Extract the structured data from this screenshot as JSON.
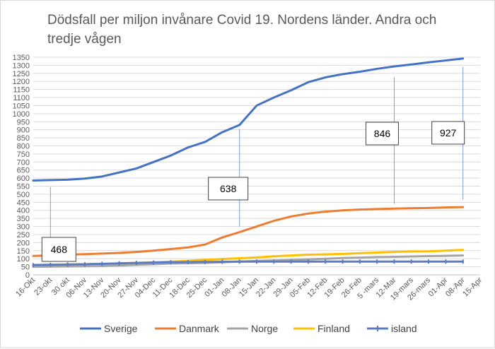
{
  "chart_data": {
    "type": "line",
    "title": "Dödsfall per miljon invånare Covid 19. Nordens länder. Andra och tredje  vågen",
    "xlabel": "",
    "ylabel": "",
    "ylim": [
      0,
      1350
    ],
    "yticks": [
      0,
      50,
      100,
      150,
      200,
      250,
      300,
      350,
      400,
      450,
      500,
      550,
      600,
      650,
      700,
      750,
      800,
      850,
      900,
      950,
      1000,
      1050,
      1100,
      1150,
      1200,
      1250,
      1300,
      1350
    ],
    "grid": true,
    "legend": "bottom",
    "x": [
      "16-Okt",
      "23-okt",
      "30 okt",
      "06-Nov",
      "13-Nov",
      "20-Nov",
      "27-Nov",
      "04-Dec",
      "11-Dec",
      "18-Dec",
      "25-Dec",
      "01-Jan",
      "08-Jan",
      "15-Jan",
      "22-Jan",
      "29-Jan",
      "05-Feb",
      "12-Feb",
      "19-Feb",
      "26-Feb",
      "5 -mars",
      "12-Mar",
      "19-mars",
      "26-mars",
      "01-Apr",
      "08-Apr",
      "15-Apr"
    ],
    "series": [
      {
        "name": "Sverige",
        "color": "#4472c4",
        "values": [
          585,
          588,
          590,
          597,
          610,
          635,
          660,
          700,
          740,
          790,
          825,
          885,
          930,
          1050,
          1100,
          1145,
          1195,
          1225,
          1245,
          1260,
          1278,
          1293,
          1305,
          1318,
          1330,
          1342,
          null
        ]
      },
      {
        "name": "Danmark",
        "color": "#ed7d31",
        "values": [
          117,
          120,
          125,
          128,
          132,
          136,
          142,
          150,
          160,
          170,
          188,
          232,
          265,
          300,
          335,
          362,
          380,
          392,
          400,
          405,
          408,
          411,
          413,
          415,
          418,
          420,
          null
        ]
      },
      {
        "name": "Norge",
        "color": "#a5a5a5",
        "values": [
          50,
          51,
          52,
          53,
          55,
          58,
          62,
          66,
          70,
          72,
          74,
          78,
          82,
          86,
          89,
          92,
          96,
          100,
          104,
          107,
          110,
          112,
          114,
          116,
          118,
          120,
          null
        ]
      },
      {
        "name": "Finland",
        "color": "#ffc000",
        "values": [
          62,
          63,
          64,
          66,
          68,
          71,
          74,
          78,
          82,
          87,
          93,
          98,
          103,
          108,
          115,
          120,
          125,
          127,
          130,
          134,
          138,
          142,
          145,
          146,
          150,
          155,
          null
        ]
      },
      {
        "name": "island",
        "color": "#5b7bc4",
        "values": [
          60,
          62,
          64,
          66,
          68,
          71,
          74,
          76,
          78,
          79,
          80,
          81,
          82,
          82,
          82,
          82,
          82,
          82,
          82,
          82,
          82,
          82,
          82,
          82,
          82,
          82,
          null
        ]
      }
    ],
    "annotations": [
      {
        "label": "468",
        "x_index": 1,
        "line_from": 545,
        "line_to": 140
      },
      {
        "label": "638",
        "x_index": 12,
        "line_from": 905,
        "line_to": 300
      },
      {
        "label": "846",
        "x_index": 21,
        "line_from": 1225,
        "line_to": 440
      },
      {
        "label": "927",
        "x_index": 25,
        "line_from": 1290,
        "line_to": 465
      }
    ]
  }
}
